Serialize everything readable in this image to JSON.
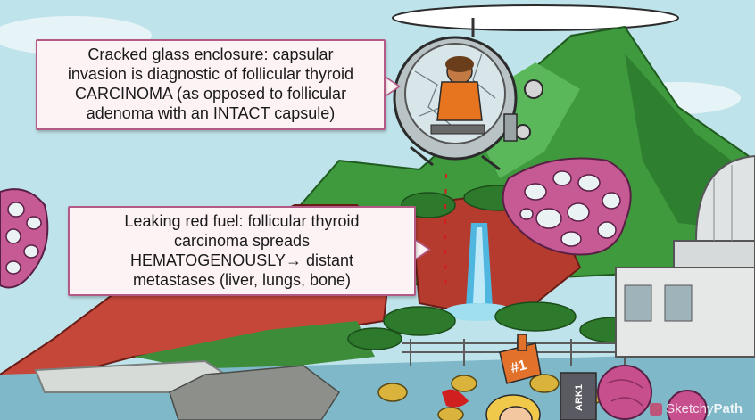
{
  "callouts": {
    "capsule": {
      "lines": [
        "Cracked glass enclosure: capsular",
        "invasion is diagnostic of follicular thyroid",
        "CARCINOMA (as opposed to follicular",
        "adenoma with an INTACT capsule)"
      ]
    },
    "fuel": {
      "lines": [
        "Leaking red fuel: follicular thyroid",
        "carcinoma spreads",
        "HEMATOGENOUSLY→ distant",
        "metastases (liver, lungs, bone)"
      ]
    }
  },
  "signs": {
    "foam_finger": "#1",
    "barrel_label": "ARK1"
  },
  "watermark": {
    "part1": "Sketchy",
    "part2": "Path"
  },
  "colors": {
    "sky": "#bfe3ea",
    "mountain_green": "#3e9a3c",
    "cliff_red": "#c4473a",
    "water": "#7fb8c8",
    "callout_border": "#b45a86",
    "callout_fill": "#fdf3f5",
    "follicle_pink": "#c65a95",
    "fuel_red": "#d11f1f"
  }
}
